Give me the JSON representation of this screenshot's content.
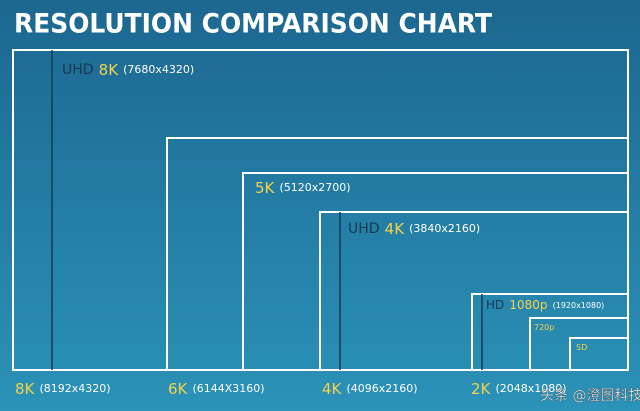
{
  "header": {
    "title": "RESOLUTION COMPARISON CHART"
  },
  "inner_labels": [
    {
      "prefix": "UHD",
      "key": "8K",
      "detail": "(7680x4320)"
    },
    {
      "key": "5K",
      "detail": "(5120x2700)"
    },
    {
      "prefix": "UHD",
      "key": "4K",
      "detail": "(3840x2160)"
    },
    {
      "prefix": "HD",
      "key": "1080p",
      "detail": "(1920x1080)"
    },
    {
      "key": "720p"
    },
    {
      "key": "SD"
    }
  ],
  "bottom_labels": [
    {
      "key": "8K",
      "detail": "(8192x4320)"
    },
    {
      "key": "6K",
      "detail": "(6144X3160)"
    },
    {
      "key": "4K",
      "detail": "(4096x2160)"
    },
    {
      "key": "2K",
      "detail": "(2048x1080)"
    }
  ],
  "watermark": "头条 @澄图科技"
}
